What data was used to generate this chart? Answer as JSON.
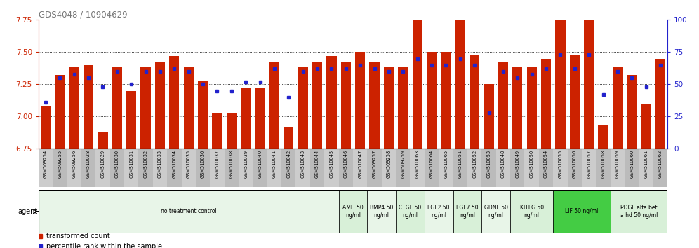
{
  "title": "GDS4048 / 10904629",
  "samples": [
    "GSM509254",
    "GSM509255",
    "GSM509256",
    "GSM510028",
    "GSM510029",
    "GSM510030",
    "GSM510031",
    "GSM510032",
    "GSM510033",
    "GSM510034",
    "GSM510035",
    "GSM510036",
    "GSM510037",
    "GSM510038",
    "GSM510039",
    "GSM510040",
    "GSM510041",
    "GSM510042",
    "GSM510043",
    "GSM510044",
    "GSM510045",
    "GSM510046",
    "GSM510047",
    "GSM509257",
    "GSM509258",
    "GSM509259",
    "GSM510063",
    "GSM510064",
    "GSM510065",
    "GSM510051",
    "GSM510052",
    "GSM510053",
    "GSM510048",
    "GSM510049",
    "GSM510050",
    "GSM510054",
    "GSM510055",
    "GSM510056",
    "GSM510057",
    "GSM510058",
    "GSM510059",
    "GSM510060",
    "GSM510061",
    "GSM510062"
  ],
  "bar_values": [
    7.08,
    7.32,
    7.38,
    7.4,
    6.88,
    7.38,
    7.2,
    7.38,
    7.42,
    7.47,
    7.38,
    7.28,
    7.03,
    7.03,
    7.22,
    7.22,
    7.42,
    6.92,
    7.38,
    7.42,
    7.47,
    7.42,
    7.5,
    7.42,
    7.38,
    7.38,
    7.78,
    7.5,
    7.5,
    7.78,
    7.48,
    7.25,
    7.42,
    7.38,
    7.38,
    7.45,
    7.82,
    7.48,
    7.78,
    6.93,
    7.38,
    7.32,
    7.1,
    7.45
  ],
  "percentile_values": [
    36,
    55,
    58,
    55,
    48,
    60,
    50,
    60,
    60,
    62,
    60,
    50,
    45,
    45,
    52,
    52,
    62,
    40,
    60,
    62,
    62,
    62,
    65,
    62,
    60,
    60,
    70,
    65,
    65,
    70,
    65,
    28,
    60,
    55,
    58,
    62,
    73,
    62,
    73,
    42,
    60,
    55,
    48,
    65
  ],
  "ylim_left": [
    6.75,
    7.75
  ],
  "ylim_right": [
    0,
    100
  ],
  "yticks_left": [
    6.75,
    7.0,
    7.25,
    7.5,
    7.75
  ],
  "yticks_right": [
    0,
    25,
    50,
    75,
    100
  ],
  "bar_color": "#cc2200",
  "dot_color": "#2222cc",
  "background_color": "#ffffff",
  "title_color": "#777777",
  "left_axis_color": "#cc2200",
  "right_axis_color": "#2222cc",
  "legend_bar_label": "transformed count",
  "legend_dot_label": "percentile rank within the sample",
  "treatment_groups": [
    {
      "label": "no treatment control",
      "start": 0,
      "end": 21,
      "color": "#e8f5e8",
      "n_cols": 21
    },
    {
      "label": "AMH 50\nng/ml",
      "start": 21,
      "end": 23,
      "color": "#d8f0d8",
      "n_cols": 2
    },
    {
      "label": "BMP4 50\nng/ml",
      "start": 23,
      "end": 25,
      "color": "#e8f5e8",
      "n_cols": 2
    },
    {
      "label": "CTGF 50\nng/ml",
      "start": 25,
      "end": 27,
      "color": "#d8f0d8",
      "n_cols": 2
    },
    {
      "label": "FGF2 50\nng/ml",
      "start": 27,
      "end": 29,
      "color": "#e8f5e8",
      "n_cols": 2
    },
    {
      "label": "FGF7 50\nng/ml",
      "start": 29,
      "end": 31,
      "color": "#d8f0d8",
      "n_cols": 2
    },
    {
      "label": "GDNF 50\nng/ml",
      "start": 31,
      "end": 33,
      "color": "#e8f5e8",
      "n_cols": 2
    },
    {
      "label": "KITLG 50\nng/ml",
      "start": 33,
      "end": 36,
      "color": "#d8f0d8",
      "n_cols": 3
    },
    {
      "label": "LIF 50 ng/ml",
      "start": 36,
      "end": 40,
      "color": "#44cc44",
      "n_cols": 4
    },
    {
      "label": "PDGF alfa bet\na hd 50 ng/ml",
      "start": 40,
      "end": 44,
      "color": "#d8f0d8",
      "n_cols": 4
    }
  ]
}
